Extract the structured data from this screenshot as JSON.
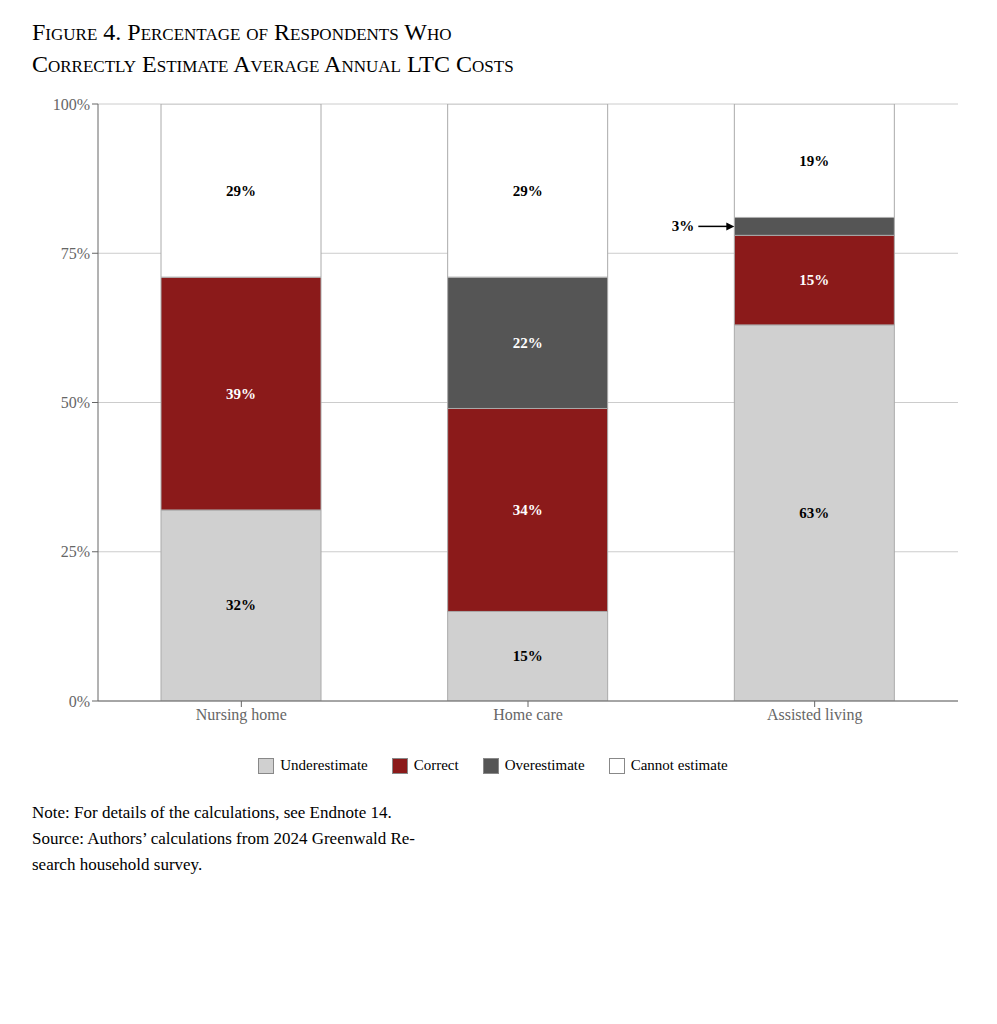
{
  "chart_data": {
    "type": "bar",
    "title": "Figure 4. Percentage of Respondents Who\nCorrectly Estimate Average Annual LTC Costs",
    "categories": [
      "Nursing home",
      "Home care",
      "Assisted living"
    ],
    "series": [
      {
        "name": "Underestimate",
        "color": "#D0D0D0",
        "values": [
          32,
          15,
          63
        ],
        "value_labels": [
          "32%",
          "15%",
          "63%"
        ]
      },
      {
        "name": "Correct",
        "color": "#8B1A1A",
        "values": [
          39,
          34,
          15
        ],
        "value_labels": [
          "39%",
          "34%",
          "15%"
        ]
      },
      {
        "name": "Overestimate",
        "color": "#555555",
        "values": [
          0,
          22,
          3
        ],
        "value_labels": [
          null,
          "22%",
          "3%"
        ]
      },
      {
        "name": "Cannot estimate",
        "color": "#FFFFFF",
        "values": [
          29,
          29,
          19
        ],
        "value_labels": [
          "29%",
          "29%",
          "19%"
        ]
      }
    ],
    "ylim": [
      0,
      100
    ],
    "yticks": [
      {
        "value": 0,
        "label": "0%"
      },
      {
        "value": 25,
        "label": "25%"
      },
      {
        "value": 50,
        "label": "50%"
      },
      {
        "value": 75,
        "label": "75%"
      },
      {
        "value": 100,
        "label": "100%"
      }
    ],
    "grid": true,
    "stacked": true,
    "data_labels": true,
    "legend": "bottom",
    "notes": [
      "Note: For details of the calculations, see Endnote 14.",
      "Source: Authors’ calculations from 2024 Greenwald Re-",
      "search household survey."
    ]
  }
}
